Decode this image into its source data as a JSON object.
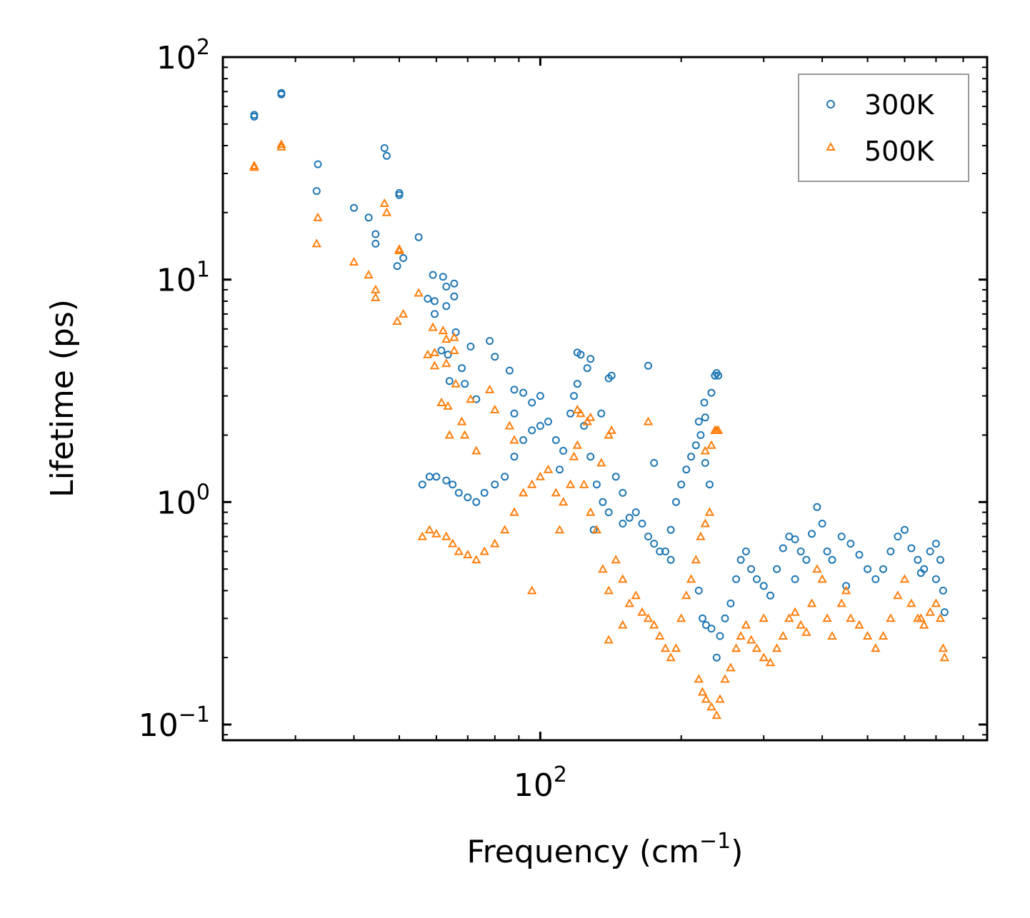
{
  "chart_data": {
    "type": "scatter",
    "title": "",
    "xlabel": "Frequency (cm",
    "xlabel_sup": "−1",
    "xlabel_close": ")",
    "ylabel": "Lifetime (ps)",
    "xscale": "log",
    "yscale": "log",
    "xlim": [
      21,
      900
    ],
    "ylim": [
      0.085,
      100
    ],
    "legend_position": "top-right",
    "x_major_ticks": [
      {
        "value": 100,
        "base": "10",
        "exp": "2"
      }
    ],
    "y_major_ticks": [
      {
        "value": 0.1,
        "base": "10",
        "exp": "−1"
      },
      {
        "value": 1,
        "base": "10",
        "exp": "0"
      },
      {
        "value": 10,
        "base": "10",
        "exp": "1"
      },
      {
        "value": 100,
        "base": "10",
        "exp": "2"
      }
    ],
    "series": [
      {
        "name": "300K",
        "marker": "circle",
        "color": "#1f77b4",
        "points": [
          [
            24.5,
            54
          ],
          [
            24.5,
            55
          ],
          [
            28,
            68
          ],
          [
            28,
            69
          ],
          [
            33.5,
            33
          ],
          [
            33.3,
            25
          ],
          [
            40,
            21
          ],
          [
            43,
            19
          ],
          [
            44.5,
            16
          ],
          [
            44.5,
            14.5
          ],
          [
            46.5,
            39
          ],
          [
            47,
            36
          ],
          [
            50,
            24
          ],
          [
            50,
            24.5
          ],
          [
            49.5,
            11.5
          ],
          [
            51,
            12.5
          ],
          [
            55,
            15.5
          ],
          [
            57.5,
            8.2
          ],
          [
            59,
            10.5
          ],
          [
            59.5,
            8.0
          ],
          [
            59.5,
            7.0
          ],
          [
            62,
            10.3
          ],
          [
            63,
            9.3
          ],
          [
            63,
            7.6
          ],
          [
            65.5,
            9.6
          ],
          [
            65.5,
            8.4
          ],
          [
            66,
            5.8
          ],
          [
            63.5,
            4.6
          ],
          [
            61.5,
            4.8
          ],
          [
            64,
            3.5
          ],
          [
            68,
            4.0
          ],
          [
            69,
            3.4
          ],
          [
            71,
            5.0
          ],
          [
            73,
            2.9
          ],
          [
            78,
            5.3
          ],
          [
            80,
            4.5
          ],
          [
            86,
            3.9
          ],
          [
            88,
            3.2
          ],
          [
            92,
            3.1
          ],
          [
            96,
            2.8
          ],
          [
            100,
            3.0
          ],
          [
            120,
            4.7
          ],
          [
            122,
            4.6
          ],
          [
            128,
            4.4
          ],
          [
            126,
            4.0
          ],
          [
            135,
            2.5
          ],
          [
            140,
            3.6
          ],
          [
            142,
            3.7
          ],
          [
            170,
            4.1
          ],
          [
            175,
            1.5
          ],
          [
            225,
            2.4
          ],
          [
            232,
            3.1
          ],
          [
            236,
            3.7
          ],
          [
            238,
            3.8
          ],
          [
            240,
            3.7
          ],
          [
            224,
            2.8
          ],
          [
            218,
            2.3
          ],
          [
            56,
            1.2
          ],
          [
            58,
            1.3
          ],
          [
            60,
            1.3
          ],
          [
            63,
            1.25
          ],
          [
            65,
            1.2
          ],
          [
            67,
            1.1
          ],
          [
            70,
            1.05
          ],
          [
            73,
            1.0
          ],
          [
            76,
            1.1
          ],
          [
            80,
            1.2
          ],
          [
            84,
            1.3
          ],
          [
            88,
            1.6
          ],
          [
            92,
            1.9
          ],
          [
            96,
            2.1
          ],
          [
            100,
            2.2
          ],
          [
            104,
            2.3
          ],
          [
            108,
            1.9
          ],
          [
            112,
            1.7
          ],
          [
            116,
            2.5
          ],
          [
            118,
            3.0
          ],
          [
            120,
            3.4
          ],
          [
            124,
            2.2
          ],
          [
            128,
            1.6
          ],
          [
            132,
            1.2
          ],
          [
            136,
            1.0
          ],
          [
            140,
            0.9
          ],
          [
            145,
            1.3
          ],
          [
            150,
            1.1
          ],
          [
            155,
            0.85
          ],
          [
            160,
            0.9
          ],
          [
            165,
            0.8
          ],
          [
            170,
            0.7
          ],
          [
            175,
            0.65
          ],
          [
            180,
            0.6
          ],
          [
            185,
            0.6
          ],
          [
            190,
            0.75
          ],
          [
            195,
            1.0
          ],
          [
            200,
            1.2
          ],
          [
            205,
            1.4
          ],
          [
            210,
            1.6
          ],
          [
            215,
            1.8
          ],
          [
            220,
            2.0
          ],
          [
            225,
            1.5
          ],
          [
            230,
            1.2
          ],
          [
            218,
            0.4
          ],
          [
            222,
            0.3
          ],
          [
            226,
            0.28
          ],
          [
            232,
            0.27
          ],
          [
            238,
            0.2
          ],
          [
            242,
            0.25
          ],
          [
            248,
            0.3
          ],
          [
            255,
            0.35
          ],
          [
            262,
            0.45
          ],
          [
            268,
            0.55
          ],
          [
            275,
            0.6
          ],
          [
            282,
            0.5
          ],
          [
            290,
            0.45
          ],
          [
            300,
            0.42
          ],
          [
            310,
            0.38
          ],
          [
            320,
            0.5
          ],
          [
            330,
            0.62
          ],
          [
            340,
            0.7
          ],
          [
            350,
            0.68
          ],
          [
            360,
            0.6
          ],
          [
            370,
            0.55
          ],
          [
            380,
            0.72
          ],
          [
            390,
            0.95
          ],
          [
            400,
            0.8
          ],
          [
            410,
            0.6
          ],
          [
            420,
            0.55
          ],
          [
            440,
            0.7
          ],
          [
            460,
            0.65
          ],
          [
            480,
            0.58
          ],
          [
            500,
            0.5
          ],
          [
            520,
            0.45
          ],
          [
            540,
            0.5
          ],
          [
            560,
            0.6
          ],
          [
            580,
            0.7
          ],
          [
            600,
            0.75
          ],
          [
            620,
            0.62
          ],
          [
            640,
            0.55
          ],
          [
            660,
            0.5
          ],
          [
            680,
            0.6
          ],
          [
            700,
            0.65
          ],
          [
            715,
            0.55
          ],
          [
            725,
            0.4
          ],
          [
            730,
            0.32
          ],
          [
            88,
            2.5
          ],
          [
            110,
            1.4
          ],
          [
            130,
            0.75
          ],
          [
            150,
            0.8
          ],
          [
            190,
            0.55
          ],
          [
            350,
            0.45
          ],
          [
            450,
            0.42
          ],
          [
            650,
            0.48
          ],
          [
            700,
            0.45
          ]
        ]
      },
      {
        "name": "500K",
        "marker": "triangle",
        "color": "#ff7f0e",
        "points": [
          [
            24.5,
            32
          ],
          [
            24.5,
            32.5
          ],
          [
            28,
            39.5
          ],
          [
            28,
            40.5
          ],
          [
            33.5,
            19
          ],
          [
            33.3,
            14.5
          ],
          [
            40,
            12
          ],
          [
            43,
            10.5
          ],
          [
            44.5,
            9
          ],
          [
            44.5,
            8.3
          ],
          [
            46.5,
            22
          ],
          [
            47,
            20
          ],
          [
            50,
            13.5
          ],
          [
            50,
            13.7
          ],
          [
            49.5,
            6.5
          ],
          [
            51,
            7.0
          ],
          [
            55,
            8.7
          ],
          [
            57.5,
            4.6
          ],
          [
            59,
            6.1
          ],
          [
            59.5,
            4.7
          ],
          [
            59.5,
            4.1
          ],
          [
            62,
            5.9
          ],
          [
            63,
            5.4
          ],
          [
            63,
            4.2
          ],
          [
            65.5,
            5.5
          ],
          [
            65.5,
            4.8
          ],
          [
            66,
            3.4
          ],
          [
            63.5,
            2.7
          ],
          [
            61.5,
            2.8
          ],
          [
            64,
            2.0
          ],
          [
            68,
            2.3
          ],
          [
            69,
            2.0
          ],
          [
            71,
            2.9
          ],
          [
            73,
            1.7
          ],
          [
            78,
            3.2
          ],
          [
            80,
            2.6
          ],
          [
            86,
            2.2
          ],
          [
            88,
            1.9
          ],
          [
            120,
            2.6
          ],
          [
            122,
            2.5
          ],
          [
            128,
            2.4
          ],
          [
            126,
            2.3
          ],
          [
            135,
            1.5
          ],
          [
            140,
            2.0
          ],
          [
            142,
            2.1
          ],
          [
            170,
            2.3
          ],
          [
            225,
            1.7
          ],
          [
            232,
            1.8
          ],
          [
            236,
            2.1
          ],
          [
            238,
            2.1
          ],
          [
            240,
            2.1
          ],
          [
            56,
            0.7
          ],
          [
            58,
            0.75
          ],
          [
            60,
            0.72
          ],
          [
            63,
            0.7
          ],
          [
            65,
            0.65
          ],
          [
            67,
            0.6
          ],
          [
            70,
            0.58
          ],
          [
            73,
            0.55
          ],
          [
            76,
            0.6
          ],
          [
            80,
            0.65
          ],
          [
            84,
            0.75
          ],
          [
            88,
            0.9
          ],
          [
            92,
            1.1
          ],
          [
            96,
            1.2
          ],
          [
            100,
            1.3
          ],
          [
            104,
            1.4
          ],
          [
            108,
            1.1
          ],
          [
            112,
            1.0
          ],
          [
            116,
            1.2
          ],
          [
            118,
            1.6
          ],
          [
            120,
            1.8
          ],
          [
            124,
            1.2
          ],
          [
            128,
            0.9
          ],
          [
            132,
            0.75
          ],
          [
            136,
            0.5
          ],
          [
            140,
            0.4
          ],
          [
            145,
            0.55
          ],
          [
            150,
            0.45
          ],
          [
            155,
            0.35
          ],
          [
            160,
            0.38
          ],
          [
            165,
            0.32
          ],
          [
            170,
            0.3
          ],
          [
            175,
            0.28
          ],
          [
            180,
            0.25
          ],
          [
            185,
            0.22
          ],
          [
            190,
            0.2
          ],
          [
            195,
            0.22
          ],
          [
            200,
            0.3
          ],
          [
            205,
            0.38
          ],
          [
            210,
            0.45
          ],
          [
            215,
            0.55
          ],
          [
            220,
            0.7
          ],
          [
            225,
            0.8
          ],
          [
            230,
            0.9
          ],
          [
            218,
            0.16
          ],
          [
            222,
            0.14
          ],
          [
            226,
            0.13
          ],
          [
            232,
            0.12
          ],
          [
            238,
            0.11
          ],
          [
            242,
            0.13
          ],
          [
            248,
            0.16
          ],
          [
            255,
            0.18
          ],
          [
            262,
            0.22
          ],
          [
            268,
            0.25
          ],
          [
            275,
            0.28
          ],
          [
            282,
            0.24
          ],
          [
            290,
            0.22
          ],
          [
            300,
            0.2
          ],
          [
            310,
            0.19
          ],
          [
            320,
            0.22
          ],
          [
            330,
            0.25
          ],
          [
            340,
            0.3
          ],
          [
            350,
            0.32
          ],
          [
            360,
            0.28
          ],
          [
            370,
            0.26
          ],
          [
            380,
            0.35
          ],
          [
            390,
            0.5
          ],
          [
            400,
            0.45
          ],
          [
            410,
            0.3
          ],
          [
            420,
            0.25
          ],
          [
            440,
            0.35
          ],
          [
            460,
            0.3
          ],
          [
            480,
            0.28
          ],
          [
            500,
            0.25
          ],
          [
            520,
            0.22
          ],
          [
            540,
            0.25
          ],
          [
            560,
            0.3
          ],
          [
            580,
            0.38
          ],
          [
            600,
            0.45
          ],
          [
            620,
            0.35
          ],
          [
            640,
            0.3
          ],
          [
            660,
            0.28
          ],
          [
            680,
            0.32
          ],
          [
            700,
            0.35
          ],
          [
            715,
            0.3
          ],
          [
            725,
            0.22
          ],
          [
            730,
            0.2
          ],
          [
            96,
            0.4
          ],
          [
            110,
            0.75
          ],
          [
            140,
            0.24
          ],
          [
            150,
            0.28
          ],
          [
            300,
            0.3
          ],
          [
            450,
            0.4
          ],
          [
            650,
            0.3
          ]
        ]
      }
    ]
  }
}
